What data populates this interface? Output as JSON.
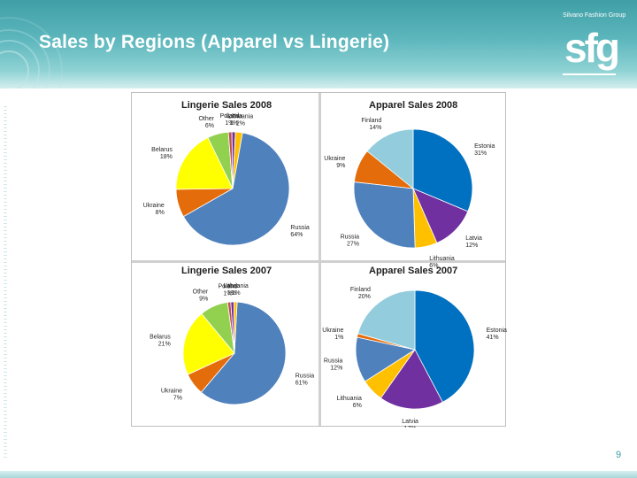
{
  "slide": {
    "title": "Sales by Regions (Apparel vs Lingerie)",
    "logo_group": "Silvano Fashion Group",
    "logo_mark": "sfg",
    "page_number": "9"
  },
  "colors": {
    "header": "#4fadb3",
    "Russia": "#4f81bd",
    "Ukraine": "#e46c0a",
    "Belarus": "#ffff00",
    "Other": "#92d050",
    "Poland": "#c0504d",
    "Latvia": "#7030a0",
    "Lithuania": "#ffc000",
    "Estonia": "#0070c0",
    "Finland": "#93cddd"
  },
  "chart_data": [
    {
      "type": "pie",
      "title": "Lingerie Sales 2008",
      "labels": [
        "Russia",
        "Ukraine",
        "Belarus",
        "Other",
        "Poland",
        "Latvia",
        "Lithuania"
      ],
      "values": [
        64,
        8,
        18,
        6,
        1,
        1,
        2
      ],
      "value_labels": [
        "64%",
        "8%",
        "18%",
        "6%",
        "1%",
        "1%",
        "2%"
      ],
      "start_angle_deg": 10
    },
    {
      "type": "pie",
      "title": "Apparel Sales 2008",
      "labels": [
        "Estonia",
        "Latvia",
        "Lithuania",
        "Russia",
        "Ukraine",
        "Finland"
      ],
      "values": [
        31,
        12,
        6,
        27,
        9,
        14
      ],
      "value_labels": [
        "31%",
        "12%",
        "6%",
        "27%",
        "9%",
        "14%"
      ],
      "start_angle_deg": 0
    },
    {
      "type": "pie",
      "title": "Lingerie Sales 2007",
      "labels": [
        "Russia",
        "Ukraine",
        "Belarus",
        "Other",
        "Poland",
        "Latvia",
        "Lithuania"
      ],
      "values": [
        61,
        7,
        21,
        9,
        1,
        1,
        1
      ],
      "value_labels": [
        "61%",
        "7%",
        "21%",
        "9%",
        "1%",
        "1%",
        "1%"
      ],
      "start_angle_deg": 3
    },
    {
      "type": "pie",
      "title": "Apparel Sales 2007",
      "labels": [
        "Estonia",
        "Latvia",
        "Lithuania",
        "Russia",
        "Ukraine",
        "Finland"
      ],
      "values": [
        41,
        17,
        6,
        12,
        1,
        20
      ],
      "value_labels": [
        "41%",
        "17%",
        "6%",
        "12%",
        "1%",
        "20%"
      ],
      "start_angle_deg": 0
    }
  ]
}
